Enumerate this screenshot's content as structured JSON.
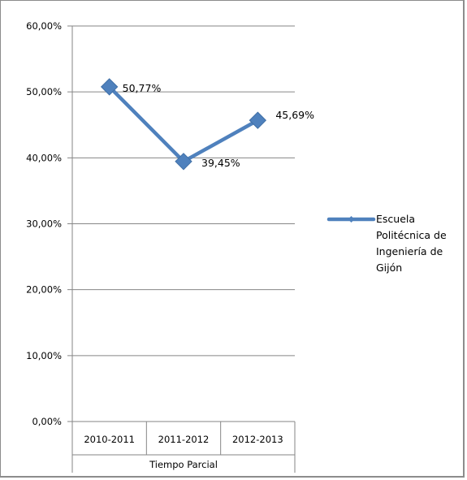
{
  "chart_data": {
    "type": "line",
    "categories": [
      "2010-2011",
      "2011-2012",
      "2012-2013"
    ],
    "category_group_label": "Tiempo Parcial",
    "series": [
      {
        "name": "Escuela Politécnica de Ingeniería de Gijón",
        "values": [
          50.77,
          39.45,
          45.69
        ],
        "data_labels": [
          "50,77%",
          "39,45%",
          "45,69%"
        ],
        "color": "#4f81bd",
        "marker": "diamond"
      }
    ],
    "ylim": [
      0,
      60
    ],
    "yticks": [
      0,
      10,
      20,
      30,
      40,
      50,
      60
    ],
    "ytick_labels": [
      "0,00%",
      "10,00%",
      "20,00%",
      "30,00%",
      "40,00%",
      "50,00%",
      "60,00%"
    ],
    "grid": true,
    "legend_position": "right",
    "legend_lines": [
      "Escuela",
      "Politécnica de",
      "Ingeniería de",
      "Gijón"
    ]
  }
}
